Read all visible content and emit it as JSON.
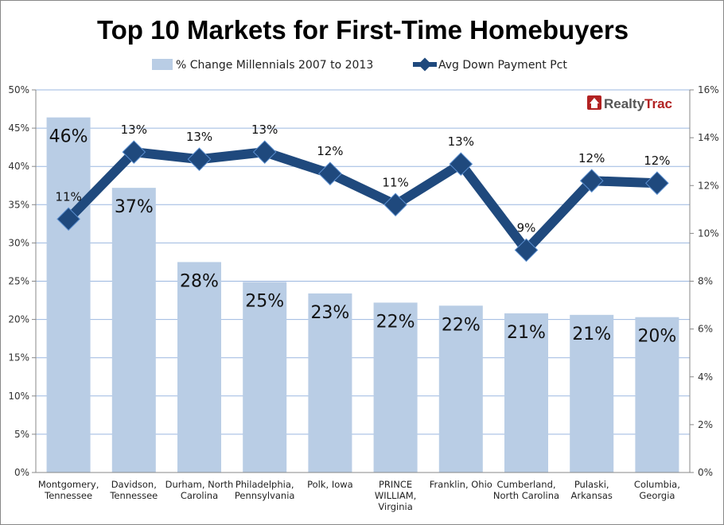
{
  "chart_data": {
    "type": "bar",
    "title": "Top 10 Markets for First-Time Homebuyers",
    "logo": "RealtyTrac",
    "categories": [
      [
        "Montgomery,",
        "Tennessee"
      ],
      [
        "Davidson,",
        "Tennessee"
      ],
      [
        "Durham, North",
        "Carolina"
      ],
      [
        "Philadelphia,",
        "Pennsylvania"
      ],
      [
        "Polk, Iowa"
      ],
      [
        "PRINCE",
        "WILLIAM,",
        "Virginia"
      ],
      [
        "Franklin, Ohio"
      ],
      [
        "Cumberland,",
        "North Carolina"
      ],
      [
        "Pulaski,",
        "Arkansas"
      ],
      [
        "Columbia,",
        "Georgia"
      ]
    ],
    "series": [
      {
        "name": "% Change Millennials 2007 to 2013",
        "type": "bar",
        "axis": "left",
        "color": "#b9cde5",
        "values": [
          46.4,
          37.2,
          27.5,
          24.9,
          23.4,
          22.2,
          21.8,
          20.8,
          20.6,
          20.3
        ],
        "labels": [
          "46%",
          "37%",
          "28%",
          "25%",
          "23%",
          "22%",
          "22%",
          "21%",
          "21%",
          "20%"
        ]
      },
      {
        "name": "Avg Down Payment Pct",
        "type": "line",
        "axis": "right",
        "color": "#1f497d",
        "values": [
          10.6,
          13.4,
          13.1,
          13.4,
          12.5,
          11.2,
          12.9,
          9.3,
          12.2,
          12.1
        ],
        "labels": [
          "11%",
          "13%",
          "13%",
          "13%",
          "12%",
          "11%",
          "13%",
          "9%",
          "12%",
          "12%"
        ]
      }
    ],
    "y_left": {
      "ylim": [
        0,
        50
      ],
      "ticks": [
        "0%",
        "5%",
        "10%",
        "15%",
        "20%",
        "25%",
        "30%",
        "35%",
        "40%",
        "45%",
        "50%"
      ]
    },
    "y_right": {
      "ylim": [
        0,
        16
      ],
      "ticks": [
        "0%",
        "2%",
        "4%",
        "6%",
        "8%",
        "10%",
        "12%",
        "14%",
        "16%"
      ]
    },
    "grid": true,
    "legend_position": "top"
  }
}
